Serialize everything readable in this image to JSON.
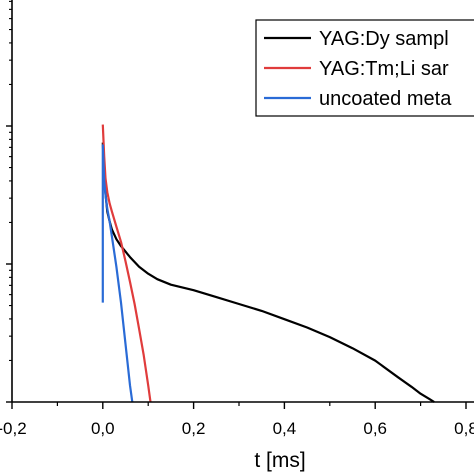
{
  "chart_data": {
    "type": "line",
    "xlabel": "t [ms]",
    "ylabel": "",
    "xlim": [
      -0.2,
      0.8
    ],
    "ylim_decades": [
      0,
      2
    ],
    "log_y": true,
    "x_ticks": [
      -0.2,
      0.0,
      0.2,
      0.4,
      0.6,
      0.8
    ],
    "x_tick_labels": [
      "-0,2",
      "0,0",
      "0,2",
      "0,4",
      "0,6",
      "0,8"
    ],
    "legend_position": "top-right",
    "grid": false,
    "series": [
      {
        "name": "YAG:Dy sampl",
        "color": "#000000",
        "x": [
          0.0,
          0.002,
          0.005,
          0.01,
          0.015,
          0.02,
          0.03,
          0.04,
          0.05,
          0.06,
          0.08,
          0.1,
          0.12,
          0.15,
          0.2,
          0.25,
          0.3,
          0.35,
          0.4,
          0.45,
          0.5,
          0.55,
          0.6,
          0.65,
          0.68,
          0.7,
          0.72,
          0.73
        ],
        "y": [
          1.88,
          1.72,
          1.54,
          1.38,
          1.31,
          1.25,
          1.18,
          1.13,
          1.09,
          1.05,
          0.98,
          0.93,
          0.89,
          0.85,
          0.81,
          0.76,
          0.71,
          0.66,
          0.6,
          0.54,
          0.47,
          0.39,
          0.3,
          0.18,
          0.11,
          0.06,
          0.02,
          0.0
        ]
      },
      {
        "name": "YAG:Tm;Li sar",
        "color": "#e03c3c",
        "x": [
          0.0,
          0.003,
          0.006,
          0.01,
          0.015,
          0.02,
          0.03,
          0.04,
          0.05,
          0.06,
          0.07,
          0.08,
          0.09,
          0.1,
          0.105
        ],
        "y": [
          2.01,
          1.78,
          1.62,
          1.52,
          1.44,
          1.38,
          1.27,
          1.16,
          1.02,
          0.87,
          0.71,
          0.53,
          0.34,
          0.12,
          0.0
        ]
      },
      {
        "name": "uncoated meta",
        "color": "#2a6bd6",
        "x": [
          0.0,
          0.0,
          0.003,
          0.006,
          0.01,
          0.015,
          0.02,
          0.03,
          0.04,
          0.05,
          0.06,
          0.065
        ],
        "y": [
          0.72,
          1.86,
          1.6,
          1.5,
          1.4,
          1.31,
          1.2,
          0.98,
          0.72,
          0.42,
          0.12,
          0.0
        ]
      }
    ]
  }
}
